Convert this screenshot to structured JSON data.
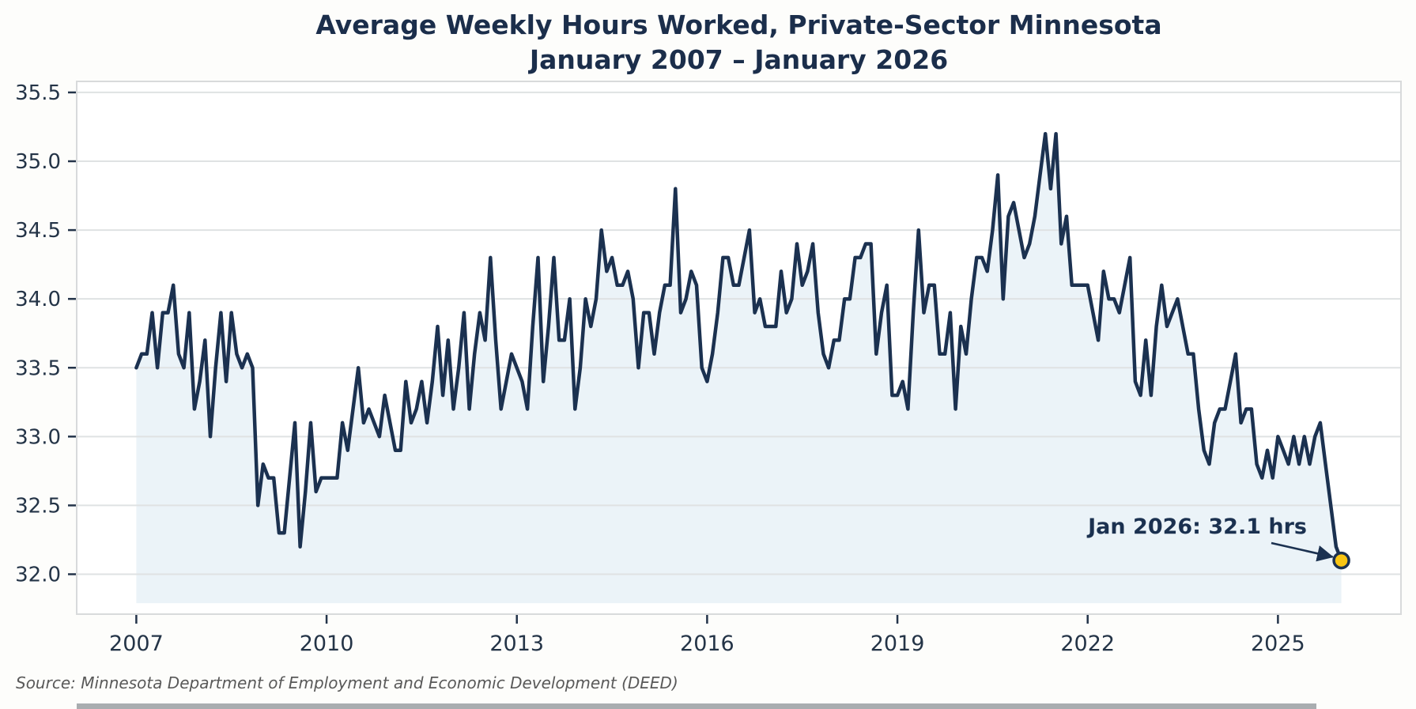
{
  "title": {
    "line1": "Average Weekly Hours Worked, Private-Sector Minnesota",
    "line2": "January 2007 – January 2026"
  },
  "annotation": {
    "text": "Jan 2026: 32.1 hrs",
    "point_label": "Jan 2026",
    "value": 32.1
  },
  "source": "Source: Minnesota Department of Employment and Economic Development (DEED)",
  "colors": {
    "line": "#1b3150",
    "area_fill": "#ebf3f8",
    "dot_fill": "#f9c513",
    "dot_stroke": "#1b3150",
    "grid": "#dfe2e3",
    "plot_border": "#d8dadb",
    "plot_bg": "#ffffff",
    "tick": "#24344a",
    "axis_text": "#243447",
    "annotation_text": "#1b3150",
    "source_text": "#595959"
  },
  "chart_data": {
    "type": "line",
    "title": "Average Weekly Hours Worked, Private-Sector Minnesota",
    "subtitle": "January 2007 – January 2026",
    "xlabel": "",
    "ylabel": "",
    "x_start": "2007-01",
    "x_end": "2026-01",
    "x_frequency": "monthly",
    "x_tick_labels": [
      "2007",
      "2010",
      "2013",
      "2016",
      "2019",
      "2022",
      "2025"
    ],
    "x_tick_years": [
      2007,
      2010,
      2013,
      2016,
      2019,
      2022,
      2025
    ],
    "y_tick_labels": [
      "35.5",
      "35.0",
      "34.5",
      "34.0",
      "33.5",
      "33.0",
      "32.5",
      "32.0"
    ],
    "y_tick_values": [
      35.5,
      35.0,
      34.5,
      34.0,
      33.5,
      33.0,
      32.5,
      32.0
    ],
    "xlim_years": [
      2006.06,
      2026.94
    ],
    "ylim": [
      31.71,
      35.58
    ],
    "fill_baseline": 31.79,
    "grid": "horizontal-only",
    "legend": "none",
    "series": [
      {
        "name": "Average weekly hours",
        "values": [
          33.5,
          33.6,
          33.6,
          33.9,
          33.5,
          33.9,
          33.9,
          34.1,
          33.6,
          33.5,
          33.9,
          33.2,
          33.4,
          33.7,
          33.0,
          33.5,
          33.9,
          33.4,
          33.9,
          33.6,
          33.5,
          33.6,
          33.5,
          32.5,
          32.8,
          32.7,
          32.7,
          32.3,
          32.3,
          32.7,
          33.1,
          32.2,
          32.6,
          33.1,
          32.6,
          32.7,
          32.7,
          32.7,
          32.7,
          33.1,
          32.9,
          33.2,
          33.5,
          33.1,
          33.2,
          33.1,
          33.0,
          33.3,
          33.1,
          32.9,
          32.9,
          33.4,
          33.1,
          33.2,
          33.4,
          33.1,
          33.4,
          33.8,
          33.3,
          33.7,
          33.2,
          33.5,
          33.9,
          33.2,
          33.6,
          33.9,
          33.7,
          34.3,
          33.7,
          33.2,
          33.4,
          33.6,
          33.5,
          33.4,
          33.2,
          33.8,
          34.3,
          33.4,
          33.8,
          34.3,
          33.7,
          33.7,
          34.0,
          33.2,
          33.5,
          34.0,
          33.8,
          34.0,
          34.5,
          34.2,
          34.3,
          34.1,
          34.1,
          34.2,
          34.0,
          33.5,
          33.9,
          33.9,
          33.6,
          33.9,
          34.1,
          34.1,
          34.8,
          33.9,
          34.0,
          34.2,
          34.1,
          33.5,
          33.4,
          33.6,
          33.9,
          34.3,
          34.3,
          34.1,
          34.1,
          34.3,
          34.5,
          33.9,
          34.0,
          33.8,
          33.8,
          33.8,
          34.2,
          33.9,
          34.0,
          34.4,
          34.1,
          34.2,
          34.4,
          33.9,
          33.6,
          33.5,
          33.7,
          33.7,
          34.0,
          34.0,
          34.3,
          34.3,
          34.4,
          34.4,
          33.6,
          33.9,
          34.1,
          33.3,
          33.3,
          33.4,
          33.2,
          33.9,
          34.5,
          33.9,
          34.1,
          34.1,
          33.6,
          33.6,
          33.9,
          33.2,
          33.8,
          33.6,
          34.0,
          34.3,
          34.3,
          34.2,
          34.5,
          34.9,
          34.0,
          34.6,
          34.7,
          34.5,
          34.3,
          34.4,
          34.6,
          34.9,
          35.2,
          34.8,
          35.2,
          34.4,
          34.6,
          34.1,
          34.1,
          34.1,
          34.1,
          33.9,
          33.7,
          34.2,
          34.0,
          34.0,
          33.9,
          34.1,
          34.3,
          33.4,
          33.3,
          33.7,
          33.3,
          33.8,
          34.1,
          33.8,
          33.9,
          34.0,
          33.8,
          33.6,
          33.6,
          33.2,
          32.9,
          32.8,
          33.1,
          33.2,
          33.2,
          33.4,
          33.6,
          33.1,
          33.2,
          33.2,
          32.8,
          32.7,
          32.9,
          32.7,
          33.0,
          32.9,
          32.8,
          33.0,
          32.8,
          33.0,
          32.8,
          33.0,
          33.1,
          32.8,
          32.5,
          32.2,
          32.1
        ]
      }
    ],
    "last_point": {
      "label": "Jan 2026",
      "value": 32.1,
      "marker": "gold-circle"
    }
  }
}
